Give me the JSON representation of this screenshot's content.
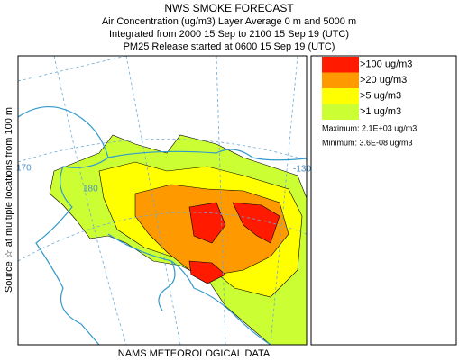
{
  "header": {
    "title": "NWS SMOKE FORECAST",
    "lines": [
      "Air Concentration (ug/m3) Layer Average    0 m and  5000 m",
      "Integrated from 2000 15 Sep to 2100 15 Sep 19 (UTC)",
      "PM25 Release started at 0600 15 Sep 19 (UTC)"
    ]
  },
  "side_label": "Source ☆ at multiple locations    from  100 m",
  "footer": "NAMS METEOROLOGICAL DATA",
  "legend": {
    "items": [
      {
        "label": ">100 ug/m3",
        "color": "#ff1a00"
      },
      {
        "label": ">20 ug/m3",
        "color": "#ff9900"
      },
      {
        "label": ">5 ug/m3",
        "color": "#ffff00"
      },
      {
        "label": ">1 ug/m3",
        "color": "#ccff33"
      }
    ],
    "maximum": "Maximum: 2.1E+03 ug/m3",
    "minimum": "Minimum: 3.6E-08 ug/m3"
  },
  "map": {
    "graticule_labels": [
      "170",
      "180",
      "-130"
    ]
  }
}
